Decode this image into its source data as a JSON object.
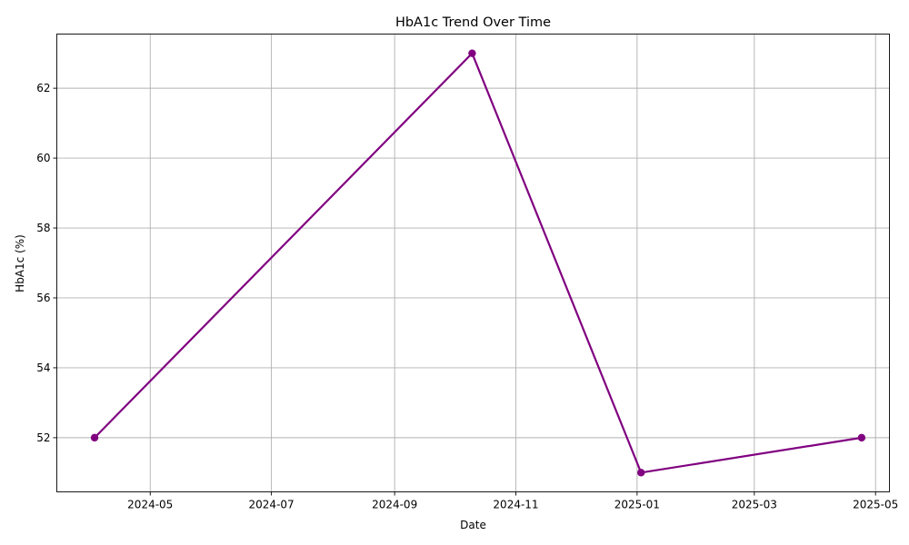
{
  "chart_data": {
    "type": "line",
    "title": "HbA1c Trend Over Time",
    "xlabel": "Date",
    "ylabel": "HbA1c (%)",
    "x_type": "date",
    "xlim": [
      "2024-03-15",
      "2025-05-08"
    ],
    "ylim": [
      50.45,
      63.55
    ],
    "x_ticks": [
      "2024-05",
      "2024-07",
      "2024-09",
      "2024-11",
      "2025-01",
      "2025-03",
      "2025-05"
    ],
    "y_ticks": [
      52,
      54,
      56,
      58,
      60,
      62
    ],
    "grid": true,
    "series": [
      {
        "x": [
          "2024-04-03",
          "2024-10-10",
          "2025-01-03",
          "2025-04-24"
        ],
        "y": [
          52,
          63,
          51,
          52
        ],
        "color": "#800080",
        "marker": "circle"
      }
    ]
  }
}
